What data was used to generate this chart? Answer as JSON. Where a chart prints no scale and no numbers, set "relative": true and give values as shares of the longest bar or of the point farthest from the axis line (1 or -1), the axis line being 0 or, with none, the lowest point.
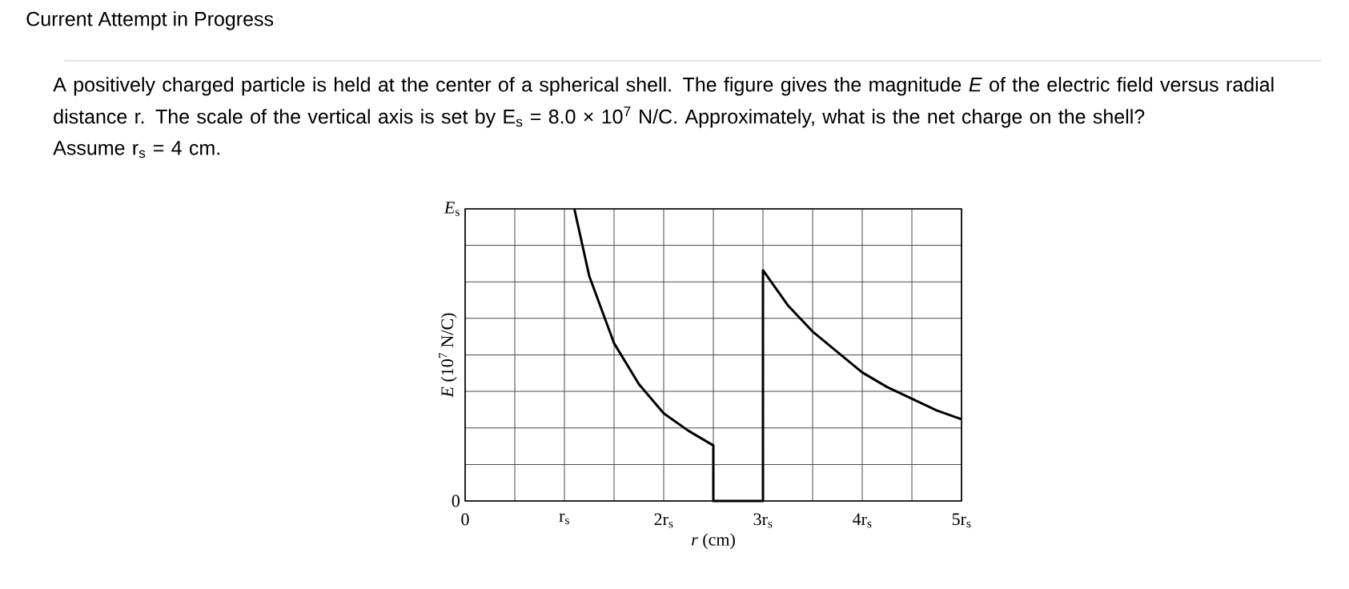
{
  "chart_data": {
    "type": "line",
    "title": "Current Attempt in Progress",
    "annotations": [
      "A positively charged particle is held at the center of a spherical shell. The figure gives the magnitude *E* of the electric field versus radial distance r. The scale of the vertical axis is set by E$_{s}$ = 8.0 × 10$^{7}$ N/C. Approximately, what is the net charge on the shell?",
      "Assume r$_{s}$ = 4 cm.",
      "*E*$_{s}$",
      "0"
    ],
    "xlabel": "*r* (cm)",
    "ylabel": "*E* (10$^{7}$ N/C)",
    "x": [
      1.1,
      1.25,
      1.5,
      1.75,
      2.0,
      2.25,
      2.5,
      2.5,
      3.0,
      3.0,
      3.25,
      3.5,
      3.75,
      4.0,
      4.25,
      4.5,
      4.75,
      5.0
    ],
    "values": [
      1.0,
      0.77,
      0.54,
      0.4,
      0.3,
      0.24,
      0.19,
      0,
      0,
      0.79,
      0.67,
      0.58,
      0.51,
      0.44,
      0.39,
      0.35,
      0.31,
      0.28
    ],
    "relative": true,
    "color": "#000000",
    "xlim": [
      0,
      5
    ],
    "xticks": [
      0,
      {
        "value": 0.5,
        "label": null
      },
      {
        "value": 1,
        "label": "r$_{s}$"
      },
      {
        "value": 1.5,
        "label": null
      },
      {
        "value": 2,
        "label": "2r$_{s}$"
      },
      {
        "value": 2.5,
        "label": null
      },
      {
        "value": 3,
        "label": "3r$_{s}$"
      },
      {
        "value": 3.5,
        "label": null
      },
      {
        "value": 4,
        "label": "4r$_{s}$"
      },
      {
        "value": 4.5,
        "label": null
      },
      {
        "value": 5,
        "label": "5r$_{s}$"
      }
    ],
    "grid": true,
    "marker": "none",
    "line_style": "solid"
  }
}
